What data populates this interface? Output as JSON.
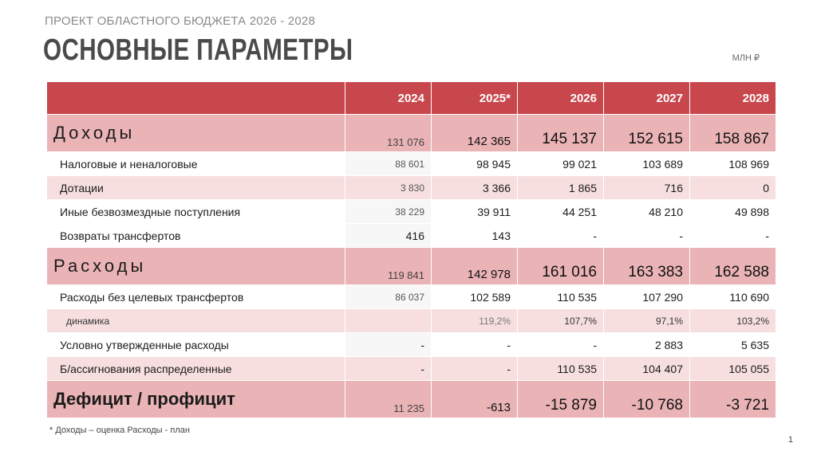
{
  "header": {
    "subtitle": "ПРОЕКТ ОБЛАСТНОГО БЮДЖЕТА 2026 - 2028",
    "title": "ОСНОВНЫЕ ПАРАМЕТРЫ",
    "units": "МЛН ₽"
  },
  "table": {
    "label_header": "",
    "years": [
      "2024",
      "2025*",
      "2026",
      "2027",
      "2028"
    ],
    "rows": [
      {
        "label": "Доходы",
        "values": [
          "131 076",
          "142 365",
          "145 137",
          "152 615",
          "158 867"
        ]
      },
      {
        "label": "Налоговые и неналоговые",
        "values": [
          "88 601",
          "98 945",
          "99 021",
          "103 689",
          "108 969"
        ]
      },
      {
        "label": "Дотации",
        "values": [
          "3 830",
          "3 366",
          "1 865",
          "716",
          "0"
        ]
      },
      {
        "label": "Иные безвозмездные поступления",
        "values": [
          "38 229",
          "39 911",
          "44 251",
          "48 210",
          "49 898"
        ]
      },
      {
        "label": "Возвраты трансфертов",
        "values": [
          "416",
          "143",
          "-",
          "-",
          "-"
        ]
      },
      {
        "label": "Расходы",
        "values": [
          "119 841",
          "142 978",
          "161 016",
          "163 383",
          "162 588"
        ]
      },
      {
        "label": "Расходы без целевых трансфертов",
        "values": [
          "86 037",
          "102 589",
          "110 535",
          "107 290",
          "110 690"
        ]
      },
      {
        "label": "динамика",
        "values": [
          "",
          "119,2%",
          "107,7%",
          "97,1%",
          "103,2%"
        ]
      },
      {
        "label": "Условно утвержденные расходы",
        "values": [
          "-",
          "-",
          "-",
          "2 883",
          "5 635"
        ]
      },
      {
        "label": "Б/ассигнования распределенные",
        "values": [
          "-",
          "-",
          "110 535",
          "104 407",
          "105 055"
        ]
      },
      {
        "label": "Дефицит / профицит",
        "values": [
          "11 235",
          "-613",
          "-15 879",
          "-10 768",
          "-3 721"
        ]
      }
    ]
  },
  "footnote": "* Доходы – оценка Расходы - план",
  "page_number": "1",
  "colors": {
    "header_red": "#c8474d",
    "main_row_pink": "#eab3b6",
    "alt_row_pink": "#f7dfe0"
  }
}
